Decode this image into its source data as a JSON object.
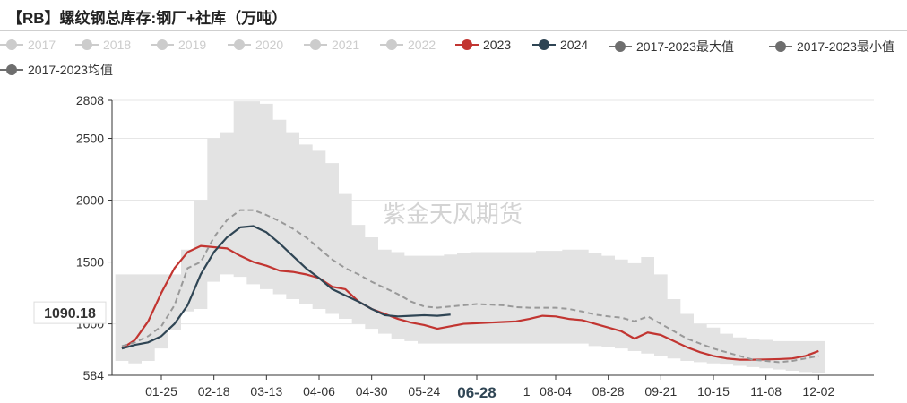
{
  "title": "【RB】螺纹钢总库存:钢厂+社库（万吨）",
  "watermark": "紫金天风期货",
  "legend": [
    {
      "name": "2017",
      "color": "#cccccc",
      "inactive": true
    },
    {
      "name": "2018",
      "color": "#cccccc",
      "inactive": true
    },
    {
      "name": "2019",
      "color": "#cccccc",
      "inactive": true
    },
    {
      "name": "2020",
      "color": "#cccccc",
      "inactive": true
    },
    {
      "name": "2021",
      "color": "#cccccc",
      "inactive": true
    },
    {
      "name": "2022",
      "color": "#cccccc",
      "inactive": true
    },
    {
      "name": "2023",
      "color": "#c23531",
      "inactive": false
    },
    {
      "name": "2024",
      "color": "#2f4554",
      "inactive": false
    },
    {
      "name": "2017-2023最大值",
      "color": "#6e6e6e",
      "inactive": false
    },
    {
      "name": "2017-2023最小值",
      "color": "#6e6e6e",
      "inactive": false
    },
    {
      "name": "2017-2023均值",
      "color": "#6e6e6e",
      "inactive": false
    }
  ],
  "axis_pointer": {
    "y_value": "1090.18",
    "x_value": "06-28"
  },
  "chart_data": {
    "type": "line",
    "ylim": [
      584,
      2808
    ],
    "y_ticks": [
      584,
      1000,
      1500,
      2000,
      2500,
      2808
    ],
    "x_ticks": [
      "01-25",
      "02-18",
      "03-13",
      "04-06",
      "04-30",
      "05-24",
      "06-28",
      "08-04",
      "08-28",
      "09-21",
      "10-15",
      "11-08",
      "12-02"
    ],
    "x_ticks_idx": [
      3,
      7,
      11,
      15,
      19,
      23,
      27,
      33,
      37,
      41,
      45,
      49,
      53
    ],
    "x_ticks_partial": [
      {
        "label": "1",
        "idx": 31
      }
    ],
    "x_count": 58,
    "series": [
      {
        "name": "2023",
        "color": "#c23531",
        "dashed": false,
        "values": [
          800,
          870,
          1020,
          1250,
          1450,
          1580,
          1630,
          1620,
          1610,
          1550,
          1500,
          1470,
          1430,
          1420,
          1400,
          1370,
          1300,
          1280,
          1180,
          1120,
          1080,
          1040,
          1010,
          990,
          960,
          980,
          1000,
          1005,
          1010,
          1015,
          1020,
          1040,
          1065,
          1060,
          1040,
          1030,
          1000,
          970,
          940,
          880,
          930,
          910,
          860,
          810,
          770,
          740,
          720,
          710,
          710,
          712,
          715,
          720,
          740,
          780
        ]
      },
      {
        "name": "2024",
        "color": "#2f4554",
        "dashed": false,
        "values": [
          800,
          830,
          850,
          900,
          1000,
          1150,
          1400,
          1580,
          1700,
          1780,
          1790,
          1740,
          1650,
          1550,
          1450,
          1370,
          1280,
          1230,
          1180,
          1120,
          1070,
          1060,
          1065,
          1070,
          1065,
          1075
        ]
      },
      {
        "name": "2017-2023均值",
        "color": "#999999",
        "dashed": true,
        "values": [
          820,
          850,
          900,
          980,
          1150,
          1450,
          1500,
          1700,
          1840,
          1920,
          1920,
          1880,
          1830,
          1770,
          1700,
          1610,
          1520,
          1450,
          1400,
          1340,
          1290,
          1240,
          1180,
          1140,
          1130,
          1140,
          1150,
          1160,
          1155,
          1150,
          1135,
          1130,
          1130,
          1130,
          1120,
          1100,
          1075,
          1060,
          1050,
          1020,
          1060,
          1000,
          940,
          880,
          840,
          800,
          770,
          740,
          710,
          700,
          690,
          700,
          720,
          740
        ]
      }
    ],
    "band_upper": [
      1400,
      1400,
      1400,
      1400,
      1400,
      1600,
      2000,
      2500,
      2550,
      2800,
      2800,
      2780,
      2650,
      2550,
      2450,
      2400,
      2300,
      2050,
      1800,
      1700,
      1600,
      1580,
      1550,
      1550,
      1550,
      1560,
      1570,
      1580,
      1580,
      1580,
      1580,
      1580,
      1590,
      1590,
      1600,
      1600,
      1570,
      1550,
      1520,
      1490,
      1540,
      1400,
      1200,
      1080,
      1000,
      970,
      920,
      890,
      880,
      870,
      860,
      860,
      860,
      860
    ],
    "band_lower": [
      700,
      680,
      700,
      800,
      950,
      1100,
      1120,
      1340,
      1400,
      1380,
      1320,
      1280,
      1240,
      1200,
      1160,
      1120,
      1080,
      1040,
      1000,
      960,
      920,
      880,
      860,
      840,
      840,
      840,
      840,
      840,
      840,
      840,
      840,
      840,
      840,
      840,
      840,
      840,
      820,
      810,
      800,
      780,
      760,
      740,
      720,
      700,
      690,
      680,
      670,
      660,
      650,
      640,
      630,
      620,
      610,
      600
    ]
  }
}
